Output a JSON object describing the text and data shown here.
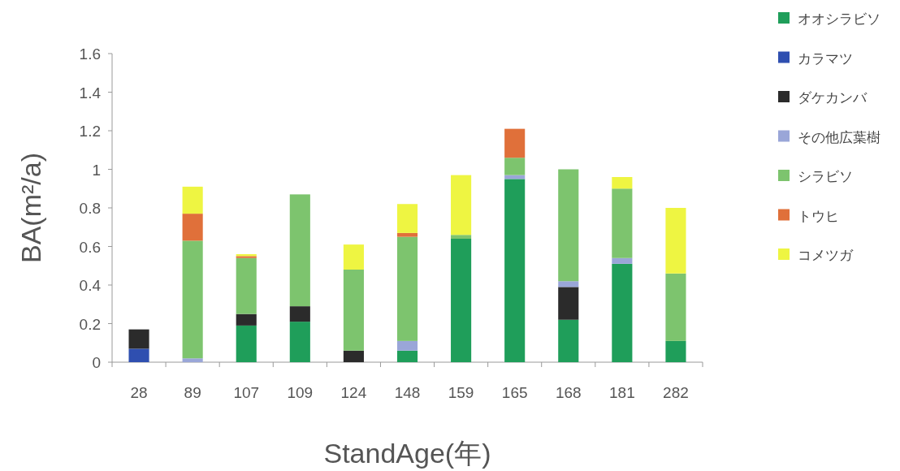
{
  "chart_data": {
    "type": "bar",
    "stacked": true,
    "xlabel": "StandAge(年)",
    "ylabel": "BA(m²/a)",
    "categories": [
      "28",
      "89",
      "107",
      "109",
      "124",
      "148",
      "159",
      "165",
      "168",
      "181",
      "282"
    ],
    "ylim": [
      0,
      1.6
    ],
    "yticks": [
      0,
      0.2,
      0.4,
      0.6,
      0.8,
      1,
      1.2,
      1.4,
      1.6
    ],
    "grid": false,
    "legend": "right",
    "series": [
      {
        "name": "オオシラビソ",
        "color": "#1f9e5a",
        "values": [
          0,
          0,
          0.19,
          0.21,
          0,
          0.06,
          0.64,
          0.95,
          0.22,
          0.51,
          0.11
        ]
      },
      {
        "name": "カラマツ",
        "color": "#2f4fb0",
        "values": [
          0.07,
          0,
          0,
          0,
          0,
          0,
          0,
          0,
          0,
          0,
          0
        ]
      },
      {
        "name": "ダケカンバ",
        "color": "#2b2b2b",
        "values": [
          0.1,
          0,
          0.06,
          0.08,
          0.06,
          0,
          0,
          0,
          0.17,
          0,
          0
        ]
      },
      {
        "name": "その他広葉樹",
        "color": "#9aa6d8",
        "values": [
          0,
          0.02,
          0,
          0,
          0,
          0.05,
          0,
          0.02,
          0.03,
          0.03,
          0
        ]
      },
      {
        "name": "シラビソ",
        "color": "#7dc46e",
        "values": [
          0,
          0.61,
          0.29,
          0.58,
          0.42,
          0.54,
          0.02,
          0.09,
          0.58,
          0.36,
          0.35
        ]
      },
      {
        "name": "トウヒ",
        "color": "#e0703a",
        "values": [
          0,
          0.14,
          0.01,
          0,
          0,
          0.02,
          0,
          0.15,
          0,
          0,
          0
        ]
      },
      {
        "name": "コメツガ",
        "color": "#eef542",
        "values": [
          0,
          0.14,
          0.01,
          0,
          0.13,
          0.15,
          0.31,
          0,
          0,
          0.06,
          0.34
        ]
      }
    ]
  }
}
